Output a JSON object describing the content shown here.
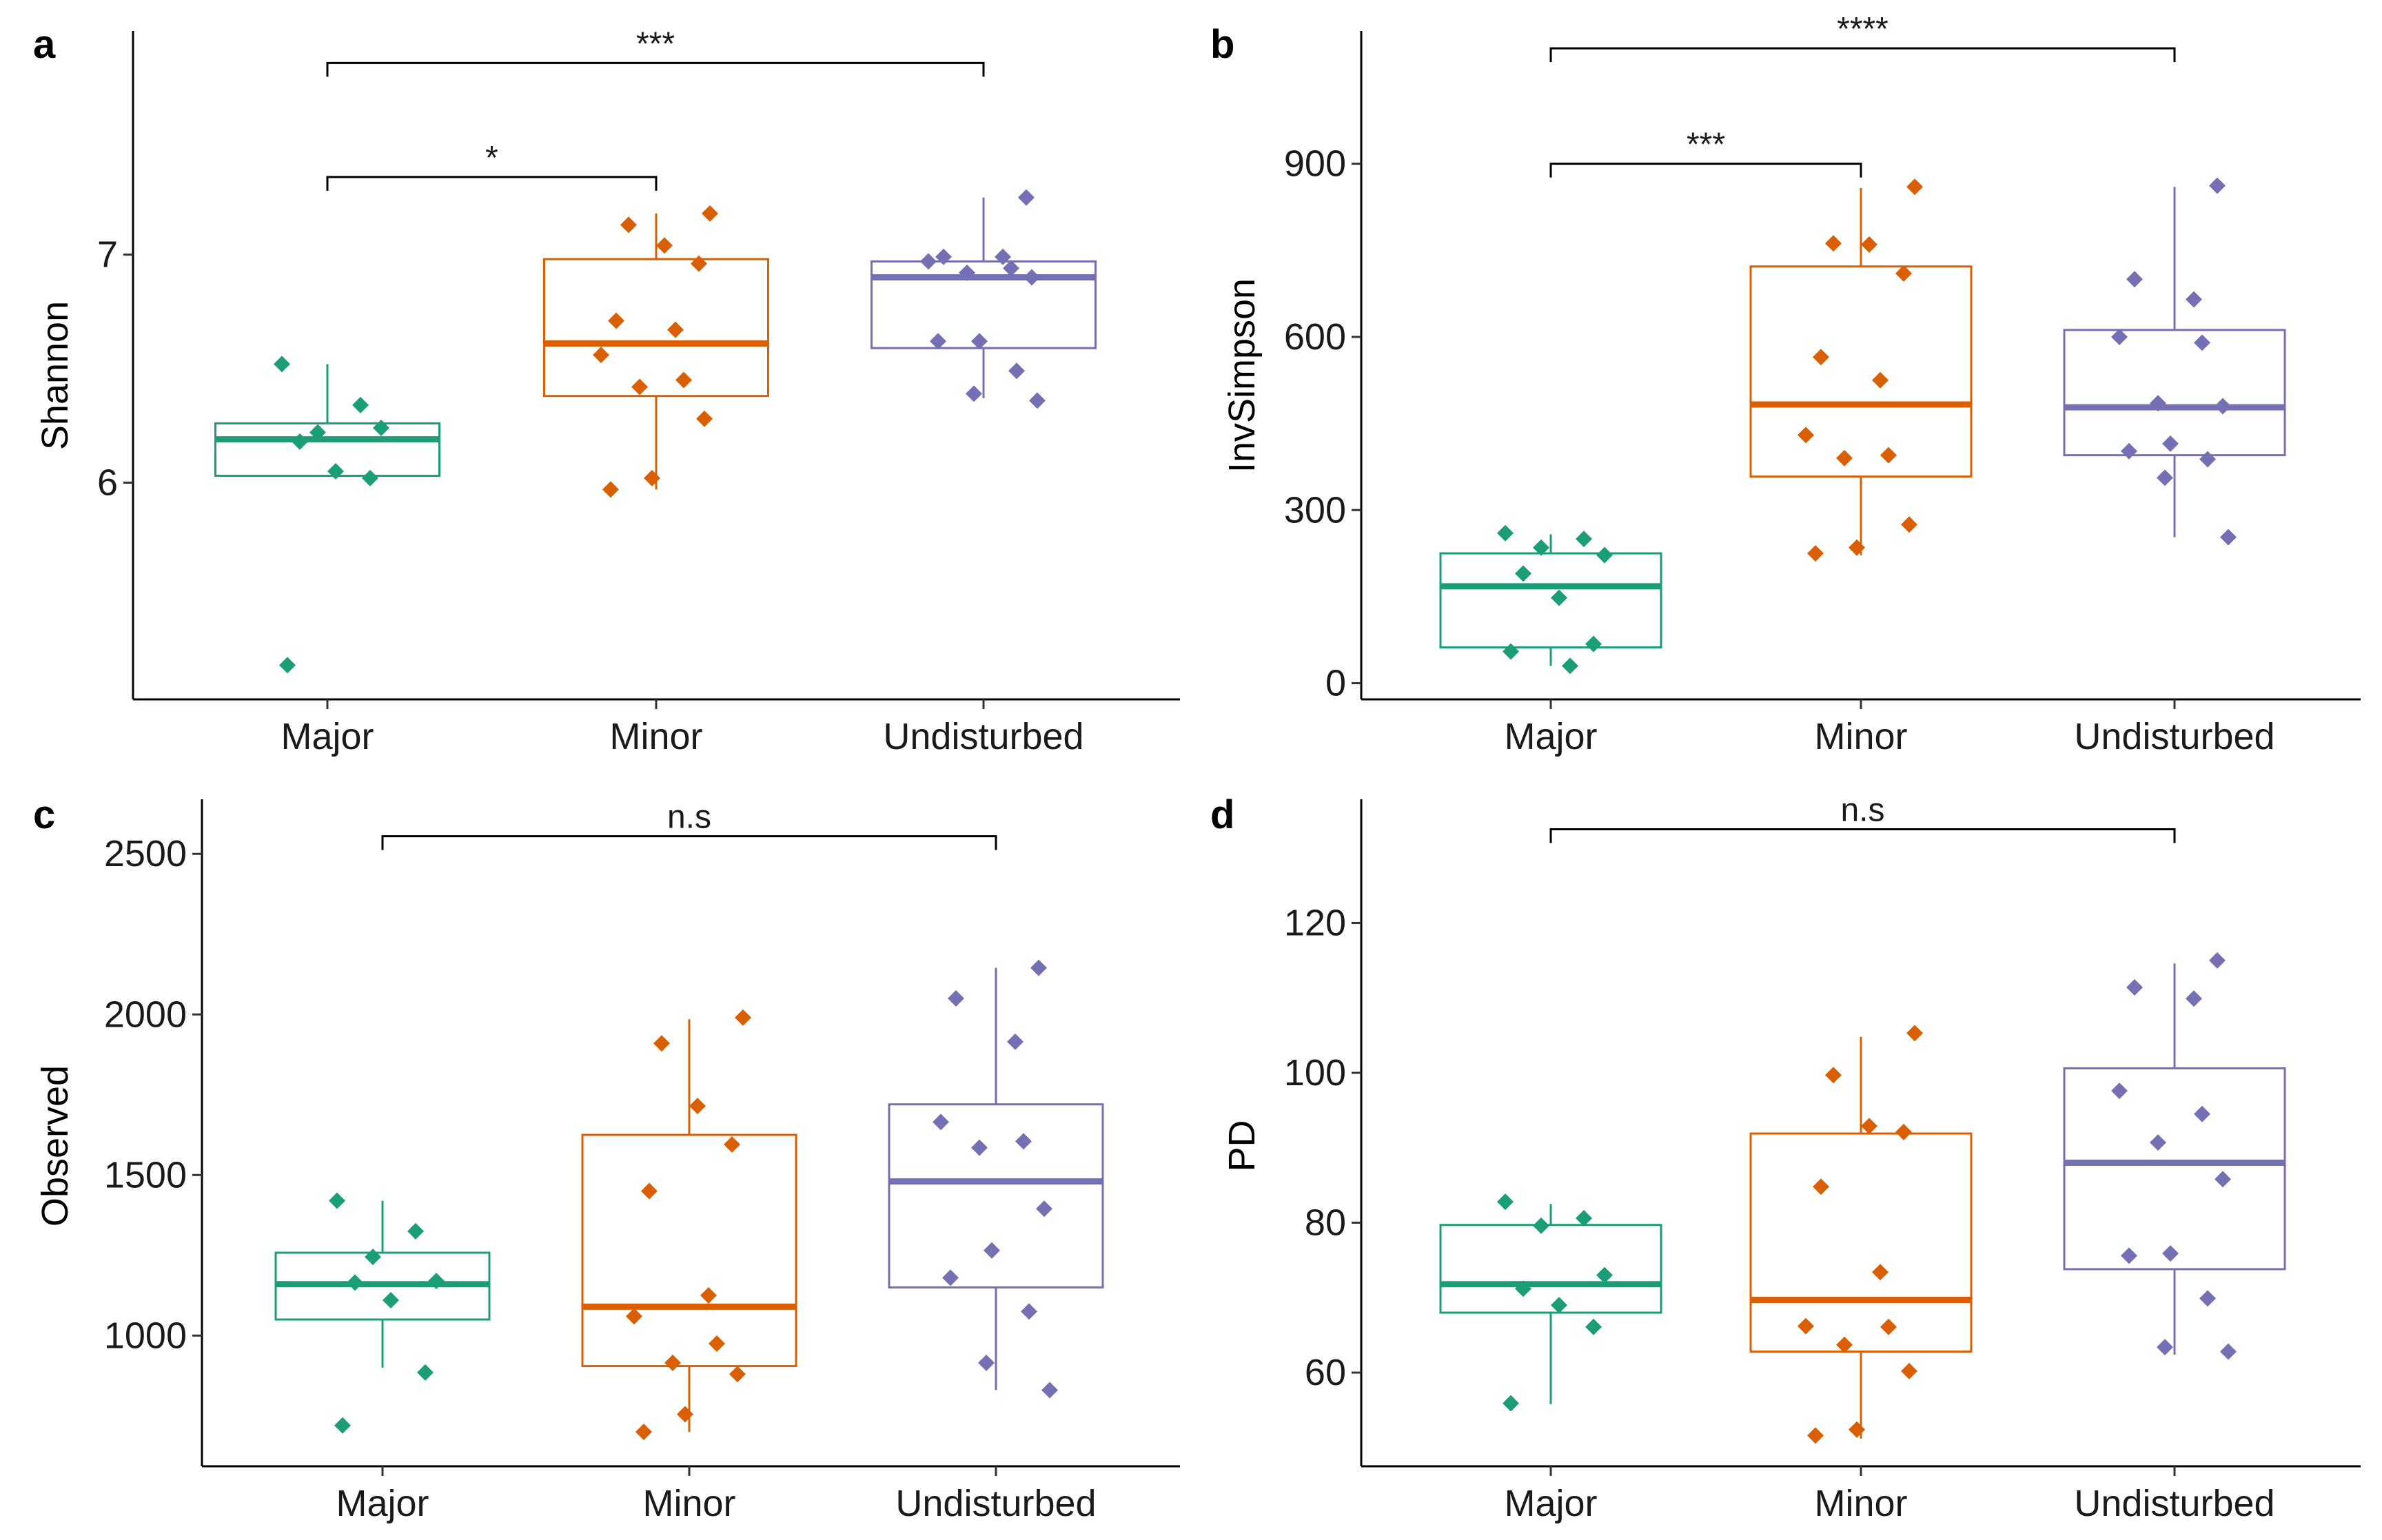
{
  "figure": {
    "description_panels": [
      "a",
      "b",
      "c",
      "d"
    ]
  },
  "chart_data": [
    {
      "panel": "a",
      "type": "box",
      "ylabel": "Shannon",
      "xlabel": "",
      "categories": [
        "Major",
        "Minor",
        "Undisturbed"
      ],
      "colors": [
        "#1b9e77",
        "#d95f02",
        "#7570b3"
      ],
      "ylim": [
        5.05,
        7.98
      ],
      "yticks": [
        6,
        7
      ],
      "boxes": [
        {
          "q1": 6.03,
          "median": 6.19,
          "q3": 6.26,
          "whisker_low": 6.03,
          "whisker_high": 6.52
        },
        {
          "q1": 6.38,
          "median": 6.61,
          "q3": 6.98,
          "whisker_low": 5.97,
          "whisker_high": 7.18
        },
        {
          "q1": 6.59,
          "median": 6.9,
          "q3": 6.97,
          "whisker_low": 6.37,
          "whisker_high": 7.25
        }
      ],
      "points": [
        [
          6.52,
          6.34,
          6.22,
          6.24,
          6.18,
          6.05,
          6.02,
          5.2
        ],
        [
          7.18,
          7.13,
          7.04,
          6.96,
          6.71,
          6.67,
          6.56,
          6.45,
          6.42,
          6.28,
          6.02,
          5.97
        ],
        [
          7.25,
          6.99,
          6.99,
          6.97,
          6.94,
          6.92,
          6.9,
          6.62,
          6.62,
          6.49,
          6.39,
          6.36
        ]
      ],
      "comparisons": [
        {
          "from": 0,
          "to": 1,
          "label": "*",
          "y": 7.34
        },
        {
          "from": 0,
          "to": 2,
          "label": "***",
          "y": 7.84
        }
      ]
    },
    {
      "panel": "b",
      "type": "box",
      "ylabel": "InvSimpson",
      "xlabel": "",
      "categories": [
        "Major",
        "Minor",
        "Undisturbed"
      ],
      "colors": [
        "#1b9e77",
        "#d95f02",
        "#7570b3"
      ],
      "ylim": [
        -28,
        1130
      ],
      "yticks": [
        0,
        300,
        600,
        900
      ],
      "boxes": [
        {
          "q1": 62,
          "median": 168,
          "q3": 225,
          "whisker_low": 30,
          "whisker_high": 258
        },
        {
          "q1": 358,
          "median": 483,
          "q3": 722,
          "whisker_low": 222,
          "whisker_high": 858
        },
        {
          "q1": 395,
          "median": 478,
          "q3": 612,
          "whisker_low": 253,
          "whisker_high": 860
        }
      ],
      "points": [
        [
          260,
          250,
          235,
          222,
          190,
          148,
          68,
          55,
          30
        ],
        [
          860,
          762,
          760,
          710,
          565,
          525,
          430,
          395,
          390,
          275,
          235,
          225
        ],
        [
          862,
          700,
          665,
          600,
          590,
          485,
          480,
          415,
          402,
          388,
          356,
          253
        ]
      ],
      "comparisons": [
        {
          "from": 0,
          "to": 1,
          "label": "***",
          "y": 900
        },
        {
          "from": 0,
          "to": 2,
          "label": "****",
          "y": 1100
        }
      ]
    },
    {
      "panel": "c",
      "type": "box",
      "ylabel": "Observed",
      "xlabel": "",
      "categories": [
        "Major",
        "Minor",
        "Undisturbed"
      ],
      "colors": [
        "#1b9e77",
        "#d95f02",
        "#7570b3"
      ],
      "ylim": [
        593,
        2670
      ],
      "yticks": [
        1000,
        1500,
        2000,
        2500
      ],
      "boxes": [
        {
          "q1": 1050,
          "median": 1160,
          "q3": 1258,
          "whisker_low": 900,
          "whisker_high": 1420
        },
        {
          "q1": 905,
          "median": 1090,
          "q3": 1625,
          "whisker_low": 700,
          "whisker_high": 1985
        },
        {
          "q1": 1150,
          "median": 1480,
          "q3": 1720,
          "whisker_low": 830,
          "whisker_high": 2145
        }
      ],
      "points": [
        [
          1420,
          1325,
          1245,
          1170,
          1165,
          1110,
          885,
          720
        ],
        [
          1990,
          1910,
          1715,
          1595,
          1450,
          1125,
          1060,
          975,
          915,
          880,
          755,
          700
        ],
        [
          2145,
          2050,
          1915,
          1665,
          1605,
          1585,
          1395,
          1265,
          1180,
          1075,
          915,
          830
        ]
      ],
      "comparisons": [
        {
          "from": 0,
          "to": 2,
          "label": "n.s",
          "y": 2555
        }
      ]
    },
    {
      "panel": "d",
      "type": "box",
      "ylabel": "PD",
      "xlabel": "",
      "categories": [
        "Major",
        "Minor",
        "Undisturbed"
      ],
      "colors": [
        "#1b9e77",
        "#d95f02",
        "#7570b3"
      ],
      "ylim": [
        47.5,
        136.5
      ],
      "yticks": [
        60,
        80,
        100,
        120
      ],
      "boxes": [
        {
          "q1": 68,
          "median": 71.8,
          "q3": 79.7,
          "whisker_low": 55.8,
          "whisker_high": 82.5
        },
        {
          "q1": 62.8,
          "median": 69.7,
          "q3": 91.9,
          "whisker_low": 51.2,
          "whisker_high": 104.8
        },
        {
          "q1": 73.8,
          "median": 88.0,
          "q3": 100.6,
          "whisker_low": 62.4,
          "whisker_high": 114.6
        }
      ],
      "points": [
        [
          82.8,
          80.6,
          79.6,
          73.0,
          71.2,
          69.0,
          66.1,
          55.9
        ],
        [
          105.3,
          99.7,
          92.9,
          92.1,
          84.8,
          73.4,
          66.2,
          66.1,
          63.7,
          60.2,
          52.4,
          51.6
        ],
        [
          115.0,
          111.4,
          109.9,
          97.6,
          94.5,
          90.7,
          85.8,
          75.9,
          75.6,
          69.9,
          63.4,
          62.8
        ]
      ],
      "comparisons": [
        {
          "from": 0,
          "to": 2,
          "label": "n.s",
          "y": 132.5
        }
      ]
    }
  ]
}
